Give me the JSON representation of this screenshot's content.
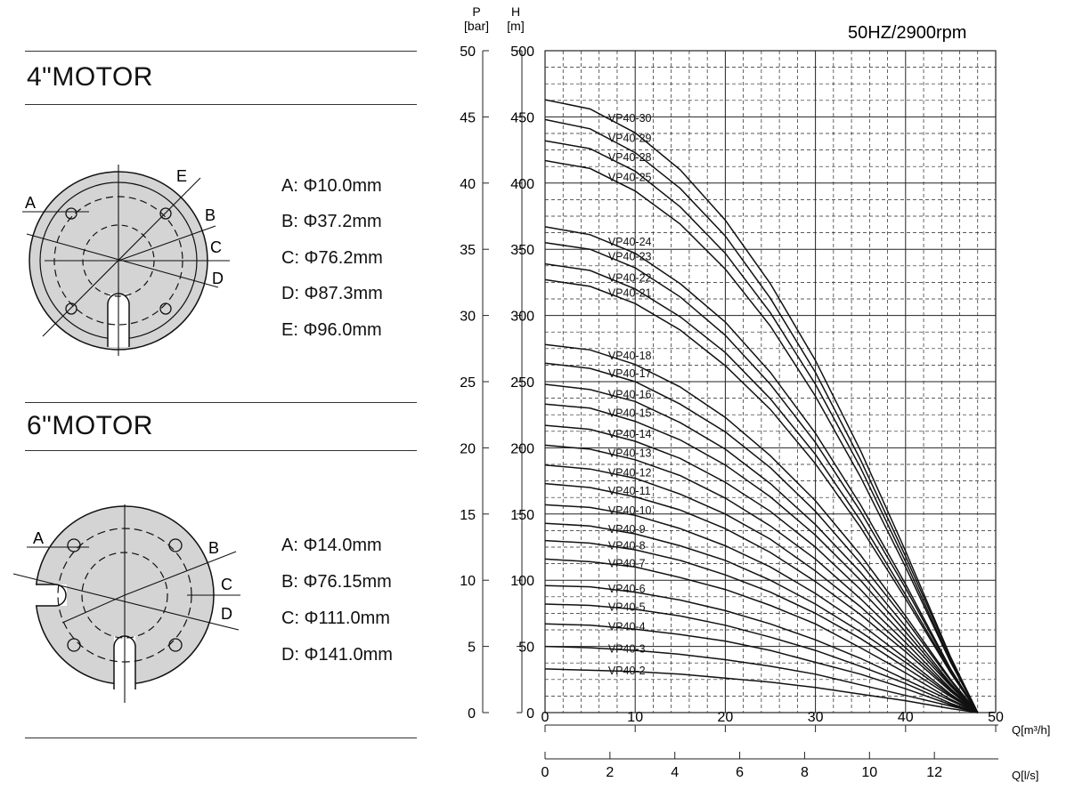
{
  "motor4": {
    "title": "4\"MOTOR",
    "labels": {
      "a": "A",
      "b": "B",
      "c": "C",
      "d": "D",
      "e": "E"
    },
    "specs": [
      "A: Φ10.0mm",
      "B: Φ37.2mm",
      "C: Φ76.2mm",
      "D: Φ87.3mm",
      "E: Φ96.0mm"
    ]
  },
  "motor6": {
    "title": "6\"MOTOR",
    "labels": {
      "a": "A",
      "b": "B",
      "c": "C",
      "d": "D"
    },
    "specs": [
      "A: Φ14.0mm",
      "B: Φ76.15mm",
      "C: Φ111.0mm",
      "D: Φ141.0mm"
    ]
  },
  "colors": {
    "flange_fill": "#d4d4d4",
    "line": "#111111",
    "grid": "#222222"
  },
  "chart_data": {
    "type": "line",
    "title": "50HZ/2900rpm",
    "p_axis": {
      "label_top": "P",
      "label_unit": "[bar]",
      "ticks": [
        0,
        5,
        10,
        15,
        20,
        25,
        30,
        35,
        40,
        45,
        50
      ],
      "ylim": [
        0,
        50
      ]
    },
    "h_axis": {
      "label_top": "H",
      "label_unit": "[m]",
      "ticks": [
        0,
        50,
        100,
        150,
        200,
        250,
        300,
        350,
        400,
        450,
        500
      ],
      "ylim": [
        0,
        500
      ]
    },
    "x_axis": {
      "label": "Q[m³/h]",
      "ticks": [
        0,
        10,
        20,
        30,
        40,
        50
      ],
      "xlim": [
        0,
        50
      ]
    },
    "x2_axis": {
      "label": "Q[l/s]",
      "ticks": [
        0,
        2,
        4,
        6,
        8,
        10,
        12
      ],
      "xlim": [
        0,
        13.89
      ]
    },
    "grid": true,
    "x": [
      0,
      5,
      10,
      15,
      20,
      25,
      30,
      35,
      40,
      45,
      48
    ],
    "series": [
      {
        "name": "VP40-30",
        "values": [
          463,
          456,
          438,
          410,
          372,
          324,
          266,
          198,
          122,
          42,
          0
        ]
      },
      {
        "name": "VP40-29",
        "values": [
          448,
          441,
          423,
          396,
          360,
          313,
          257,
          191,
          118,
          41,
          0
        ]
      },
      {
        "name": "VP40-28",
        "values": [
          432,
          426,
          409,
          382,
          347,
          302,
          248,
          185,
          114,
          39,
          0
        ]
      },
      {
        "name": "VP40-25",
        "values": [
          417,
          411,
          394,
          369,
          335,
          292,
          239,
          178,
          110,
          38,
          0
        ]
      },
      {
        "name": "VP40-24",
        "values": [
          367,
          361,
          347,
          324,
          295,
          257,
          211,
          157,
          97,
          33,
          0
        ]
      },
      {
        "name": "VP40-23",
        "values": [
          355,
          350,
          336,
          314,
          285,
          248,
          204,
          152,
          94,
          32,
          0
        ]
      },
      {
        "name": "VP40-22",
        "values": [
          339,
          334,
          320,
          299,
          272,
          237,
          195,
          145,
          89,
          31,
          0
        ]
      },
      {
        "name": "VP40-21",
        "values": [
          327,
          322,
          309,
          289,
          262,
          229,
          188,
          140,
          86,
          30,
          0
        ]
      },
      {
        "name": "VP40-18",
        "values": [
          278,
          274,
          263,
          246,
          223,
          194,
          160,
          119,
          73,
          25,
          0
        ]
      },
      {
        "name": "VP40-17",
        "values": [
          264,
          260,
          250,
          233,
          212,
          185,
          152,
          113,
          70,
          24,
          0
        ]
      },
      {
        "name": "VP40-16",
        "values": [
          248,
          244,
          235,
          219,
          199,
          173,
          142,
          106,
          65,
          22,
          0
        ]
      },
      {
        "name": "VP40-15",
        "values": [
          233,
          230,
          220,
          206,
          187,
          163,
          134,
          100,
          61,
          21,
          0
        ]
      },
      {
        "name": "VP40-14",
        "values": [
          217,
          214,
          205,
          192,
          174,
          152,
          125,
          93,
          57,
          20,
          0
        ]
      },
      {
        "name": "VP40-13",
        "values": [
          202,
          199,
          191,
          179,
          162,
          141,
          116,
          86,
          53,
          18,
          0
        ]
      },
      {
        "name": "VP40-12",
        "values": [
          187,
          184,
          177,
          165,
          150,
          131,
          107,
          80,
          49,
          17,
          0
        ]
      },
      {
        "name": "VP40-11",
        "values": [
          173,
          170,
          163,
          153,
          139,
          121,
          99,
          74,
          46,
          16,
          0
        ]
      },
      {
        "name": "VP40-10",
        "values": [
          157,
          155,
          149,
          139,
          126,
          110,
          90,
          67,
          41,
          14,
          0
        ]
      },
      {
        "name": "VP40-9",
        "values": [
          143,
          141,
          135,
          126,
          115,
          100,
          82,
          61,
          38,
          13,
          0
        ]
      },
      {
        "name": "VP40-8",
        "values": [
          130,
          128,
          123,
          115,
          104,
          91,
          75,
          56,
          34,
          12,
          0
        ]
      },
      {
        "name": "VP40-7",
        "values": [
          116,
          114,
          110,
          102,
          93,
          81,
          67,
          49,
          30,
          10,
          0
        ]
      },
      {
        "name": "VP40-6",
        "values": [
          96,
          95,
          91,
          85,
          77,
          67,
          55,
          41,
          25,
          9,
          0
        ]
      },
      {
        "name": "VP40-5",
        "values": [
          82,
          81,
          78,
          73,
          66,
          57,
          47,
          35,
          22,
          7,
          0
        ]
      },
      {
        "name": "VP40-4",
        "values": [
          67,
          66,
          63,
          59,
          54,
          47,
          38,
          29,
          18,
          6,
          0
        ]
      },
      {
        "name": "VP40-3",
        "values": [
          50,
          49,
          47,
          44,
          40,
          35,
          29,
          21,
          13,
          5,
          0
        ]
      },
      {
        "name": "VP40-2",
        "values": [
          33,
          32,
          31,
          29,
          26,
          23,
          19,
          14,
          9,
          3,
          0
        ]
      }
    ]
  }
}
